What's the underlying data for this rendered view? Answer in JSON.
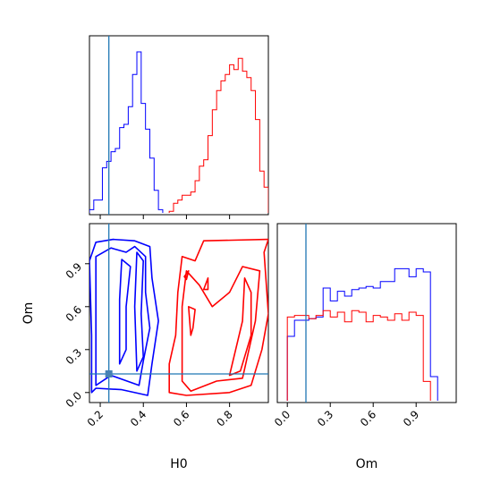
{
  "chart_data": [
    {
      "type": "histogram",
      "panel": "H0 marginal",
      "xlim": [
        0.15,
        0.98
      ],
      "truth_line": {
        "value": 0.24,
        "color": "#1f77b4"
      },
      "series": [
        {
          "color": "#0000ff",
          "bin_edges": [
            0.15,
            0.17,
            0.19,
            0.21,
            0.23,
            0.25,
            0.27,
            0.29,
            0.31,
            0.33,
            0.35,
            0.37,
            0.39,
            0.41,
            0.43,
            0.45,
            0.47,
            0.49
          ],
          "counts": [
            0.02,
            0.08,
            0.08,
            0.28,
            0.32,
            0.38,
            0.4,
            0.53,
            0.55,
            0.66,
            0.86,
            1.0,
            0.68,
            0.52,
            0.34,
            0.14,
            0.02
          ]
        },
        {
          "color": "#ff0000",
          "bin_edges": [
            0.52,
            0.54,
            0.56,
            0.58,
            0.6,
            0.62,
            0.64,
            0.66,
            0.68,
            0.7,
            0.72,
            0.74,
            0.76,
            0.78,
            0.8,
            0.82,
            0.84,
            0.86,
            0.88,
            0.9,
            0.92,
            0.94,
            0.96,
            0.98
          ],
          "counts": [
            0.01,
            0.06,
            0.08,
            0.11,
            0.11,
            0.13,
            0.2,
            0.29,
            0.33,
            0.48,
            0.64,
            0.76,
            0.82,
            0.86,
            0.92,
            0.89,
            0.96,
            0.88,
            0.84,
            0.76,
            0.58,
            0.26,
            0.16
          ]
        }
      ],
      "x_ticks": [
        "0.2",
        "0.4",
        "0.6",
        "0.8"
      ]
    },
    {
      "type": "contour",
      "panel": "H0 vs Om",
      "xlabel": "H0",
      "ylabel": "Om",
      "xlim": [
        0.15,
        0.98
      ],
      "ylim": [
        -0.07,
        1.18
      ],
      "x_ticks": [
        "0.2",
        "0.4",
        "0.6",
        "0.8"
      ],
      "y_ticks": [
        "0.0",
        "0.3",
        "0.6",
        "0.9"
      ],
      "truth_point": {
        "x": 0.24,
        "y": 0.13,
        "color": "#1f77b4"
      },
      "series": [
        {
          "color": "#0000ff",
          "contours": [
            [
              [
                0.16,
                0.0
              ],
              [
                0.16,
                0.4
              ],
              [
                0.15,
                0.92
              ],
              [
                0.18,
                1.05
              ],
              [
                0.26,
                1.07
              ],
              [
                0.36,
                1.06
              ],
              [
                0.43,
                1.02
              ],
              [
                0.44,
                0.8
              ],
              [
                0.47,
                0.5
              ],
              [
                0.44,
                0.2
              ],
              [
                0.42,
                -0.02
              ],
              [
                0.3,
                0.02
              ],
              [
                0.18,
                0.03
              ]
            ],
            [
              [
                0.18,
                0.05
              ],
              [
                0.18,
                0.5
              ],
              [
                0.18,
                0.95
              ],
              [
                0.25,
                1.01
              ],
              [
                0.32,
                0.98
              ],
              [
                0.36,
                1.02
              ],
              [
                0.41,
                0.95
              ],
              [
                0.41,
                0.7
              ],
              [
                0.43,
                0.45
              ],
              [
                0.4,
                0.22
              ],
              [
                0.38,
                0.05
              ],
              [
                0.25,
                0.12
              ]
            ],
            [
              [
                0.29,
                0.2
              ],
              [
                0.29,
                0.65
              ],
              [
                0.3,
                0.93
              ],
              [
                0.34,
                0.88
              ],
              [
                0.32,
                0.6
              ],
              [
                0.32,
                0.3
              ]
            ],
            [
              [
                0.37,
                0.15
              ],
              [
                0.36,
                0.6
              ],
              [
                0.37,
                0.98
              ],
              [
                0.4,
                0.92
              ],
              [
                0.39,
                0.55
              ],
              [
                0.4,
                0.25
              ]
            ]
          ]
        },
        {
          "color": "#ff0000",
          "contours": [
            [
              [
                0.52,
                0.1
              ],
              [
                0.52,
                0.0
              ],
              [
                0.6,
                -0.02
              ],
              [
                0.8,
                0.0
              ],
              [
                0.9,
                0.05
              ],
              [
                0.95,
                0.3
              ],
              [
                0.98,
                0.55
              ],
              [
                0.96,
                0.98
              ],
              [
                0.98,
                1.07
              ],
              [
                0.68,
                1.06
              ],
              [
                0.64,
                0.92
              ],
              [
                0.58,
                0.95
              ],
              [
                0.56,
                0.7
              ],
              [
                0.55,
                0.4
              ],
              [
                0.52,
                0.2
              ]
            ],
            [
              [
                0.58,
                0.08
              ],
              [
                0.62,
                0.01
              ],
              [
                0.74,
                0.08
              ],
              [
                0.86,
                0.1
              ],
              [
                0.92,
                0.5
              ],
              [
                0.94,
                0.85
              ],
              [
                0.86,
                0.88
              ],
              [
                0.8,
                0.7
              ],
              [
                0.72,
                0.6
              ],
              [
                0.66,
                0.75
              ],
              [
                0.6,
                0.85
              ],
              [
                0.58,
                0.6
              ],
              [
                0.58,
                0.3
              ]
            ],
            [
              [
                0.62,
                0.4
              ],
              [
                0.61,
                0.6
              ],
              [
                0.64,
                0.58
              ],
              [
                0.63,
                0.45
              ]
            ],
            [
              [
                0.8,
                0.12
              ],
              [
                0.86,
                0.5
              ],
              [
                0.87,
                0.8
              ],
              [
                0.9,
                0.7
              ],
              [
                0.9,
                0.4
              ],
              [
                0.85,
                0.15
              ]
            ],
            [
              [
                0.59,
                0.81
              ],
              [
                0.61,
                0.85
              ],
              [
                0.6,
                0.79
              ]
            ],
            [
              [
                0.68,
                0.72
              ],
              [
                0.7,
                0.8
              ],
              [
                0.7,
                0.72
              ]
            ]
          ]
        }
      ]
    },
    {
      "type": "histogram",
      "panel": "Om marginal",
      "xlabel": "Om",
      "xlim": [
        -0.07,
        1.18
      ],
      "truth_line": {
        "value": 0.13,
        "color": "#1f77b4"
      },
      "x_ticks": [
        "0.0",
        "0.3",
        "0.6",
        "0.9"
      ],
      "series": [
        {
          "color": "#0000ff",
          "bin_edges": [
            0.0,
            0.05,
            0.1,
            0.15,
            0.2,
            0.25,
            0.3,
            0.35,
            0.4,
            0.45,
            0.5,
            0.55,
            0.6,
            0.65,
            0.7,
            0.75,
            0.8,
            0.85,
            0.9,
            0.95,
            1.0,
            1.05
          ],
          "counts": [
            0.4,
            0.5,
            0.5,
            0.51,
            0.52,
            0.7,
            0.62,
            0.68,
            0.65,
            0.69,
            0.7,
            0.71,
            0.7,
            0.74,
            0.74,
            0.82,
            0.82,
            0.77,
            0.82,
            0.8,
            0.15
          ]
        },
        {
          "color": "#ff0000",
          "bin_edges": [
            0.0,
            0.05,
            0.1,
            0.15,
            0.2,
            0.25,
            0.3,
            0.35,
            0.4,
            0.45,
            0.5,
            0.55,
            0.6,
            0.65,
            0.7,
            0.75,
            0.8,
            0.85,
            0.9,
            0.95,
            1.0
          ],
          "counts": [
            0.52,
            0.53,
            0.53,
            0.51,
            0.53,
            0.56,
            0.52,
            0.55,
            0.49,
            0.56,
            0.55,
            0.49,
            0.53,
            0.52,
            0.5,
            0.54,
            0.5,
            0.55,
            0.53,
            0.12
          ]
        }
      ]
    }
  ]
}
